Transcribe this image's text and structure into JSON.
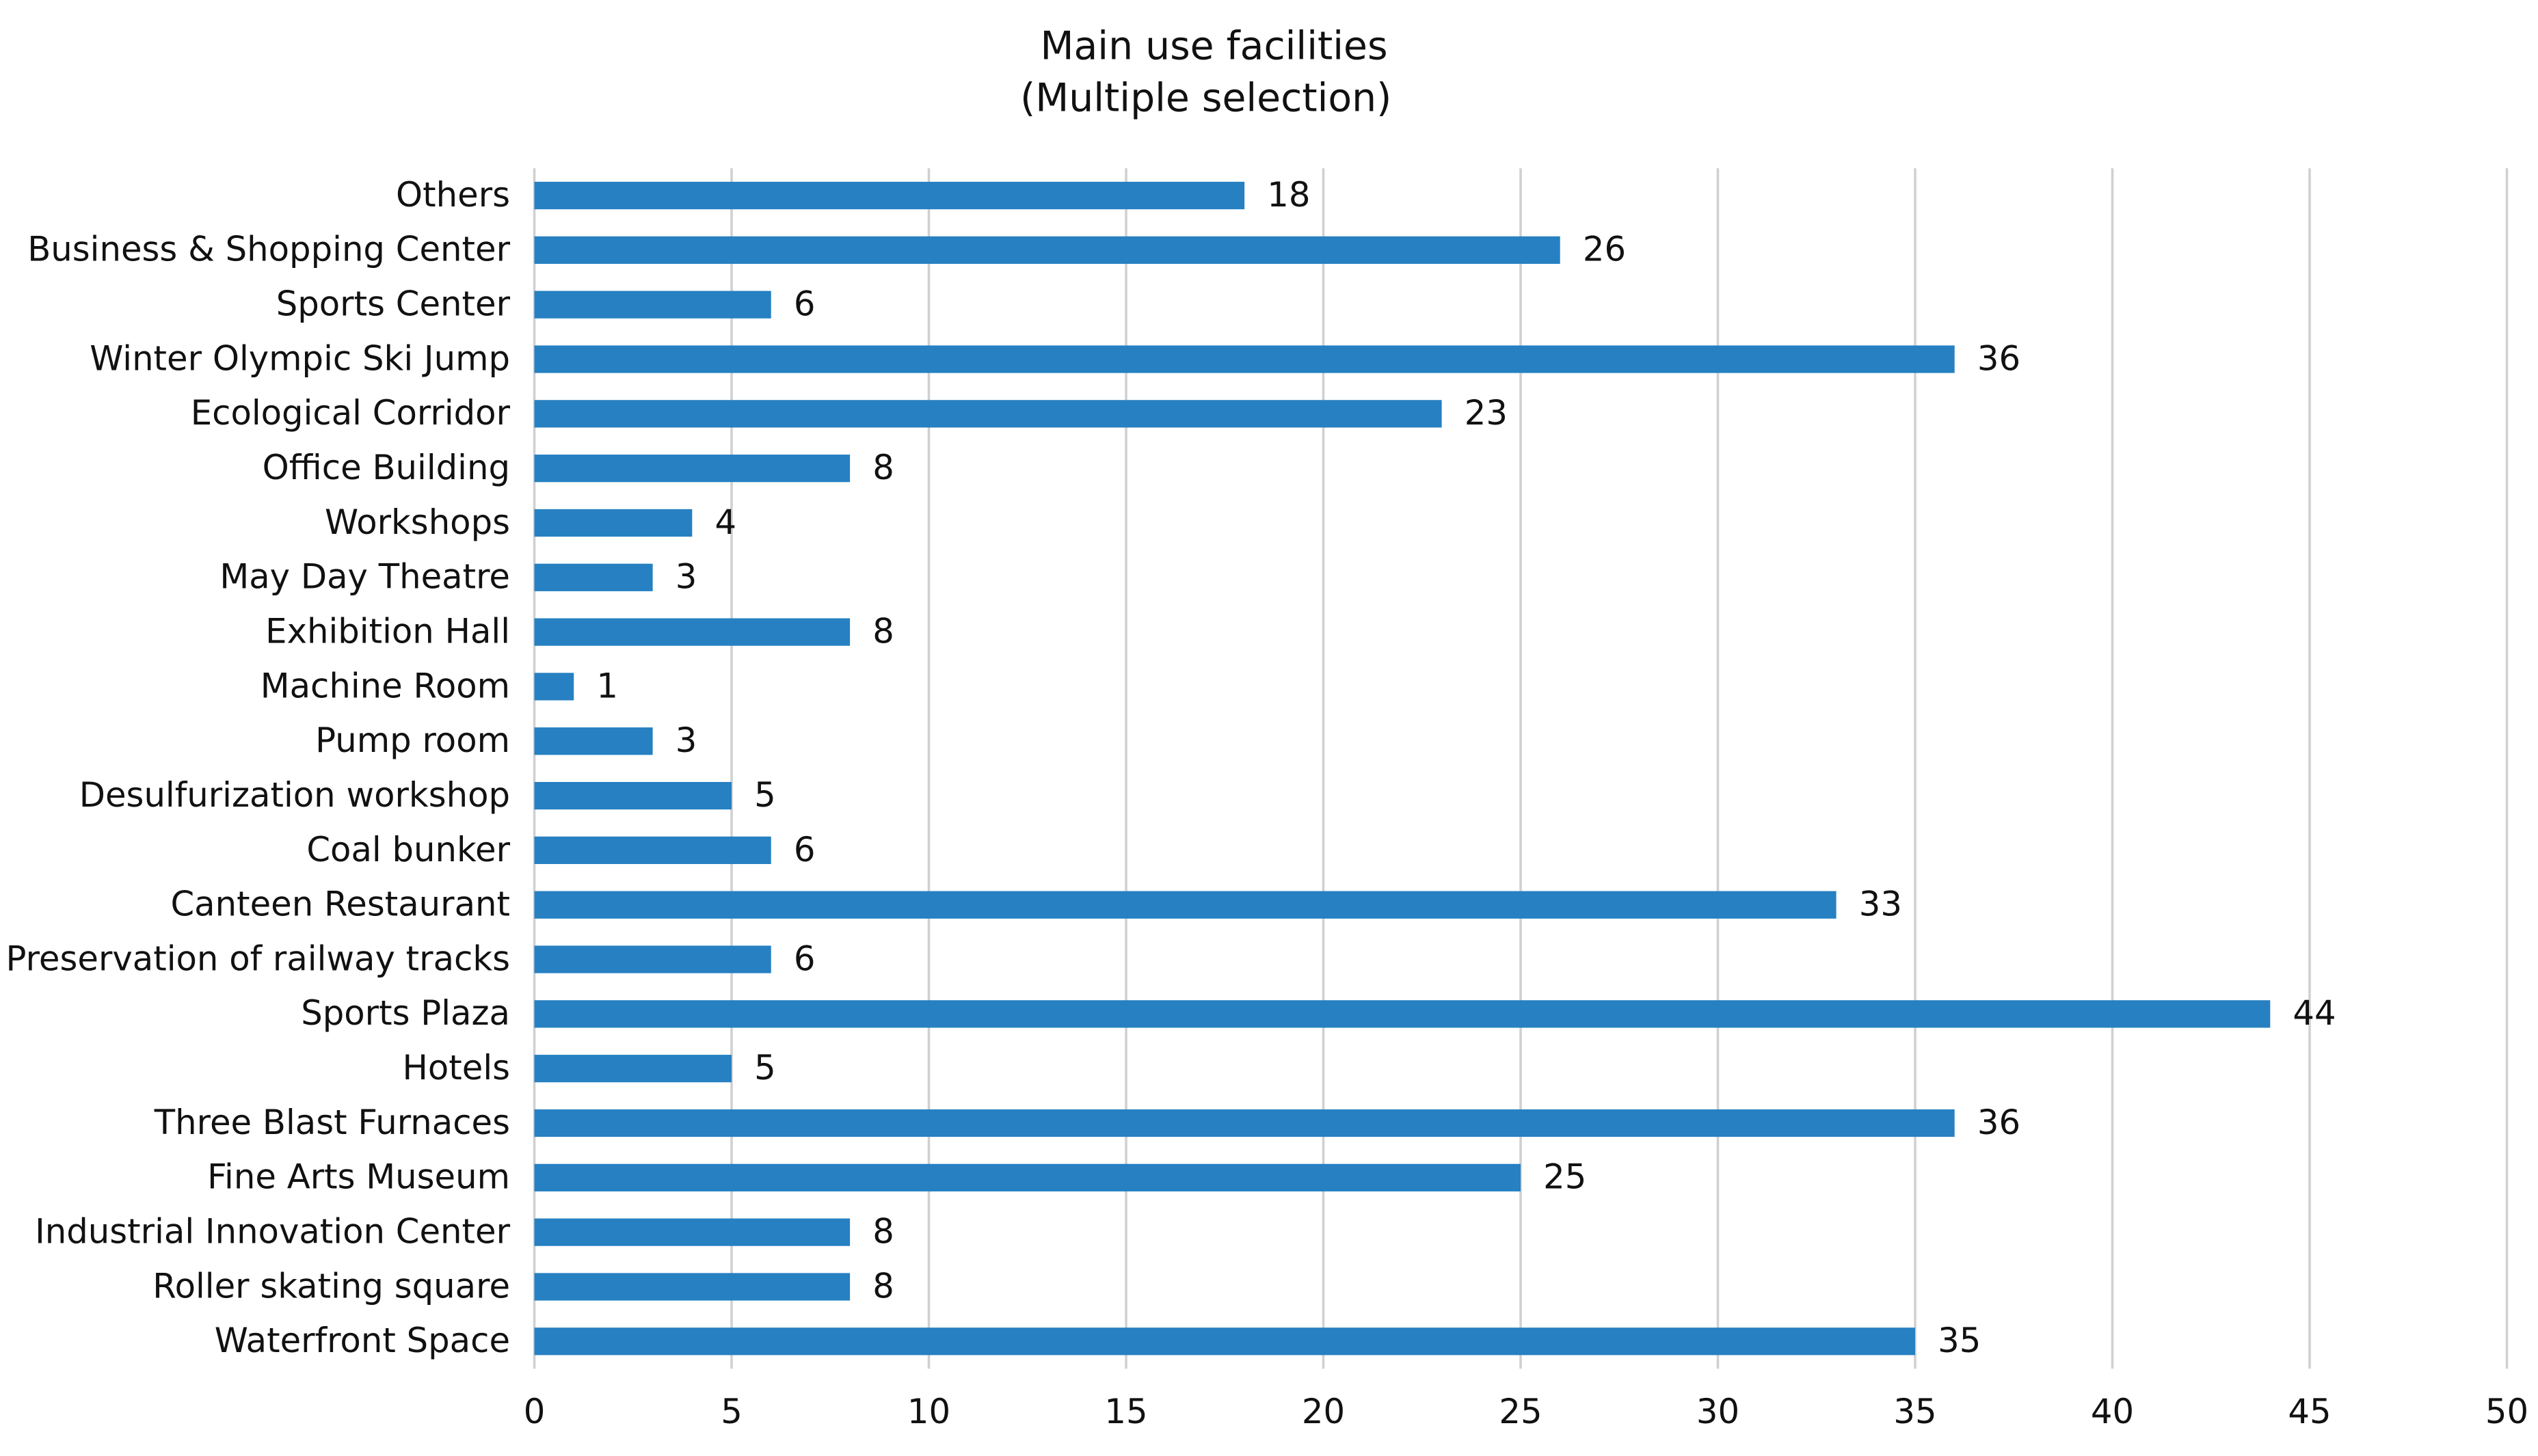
{
  "chart_data": {
    "type": "bar",
    "orientation": "horizontal",
    "title": "Main use facilities",
    "subtitle": "(Multiple selection)",
    "categories": [
      "Others",
      "Business & Shopping Center",
      "Sports Center",
      "Winter Olympic Ski Jump",
      "Ecological Corridor",
      "Office Building",
      "Workshops",
      "May Day Theatre",
      "Exhibition Hall",
      "Machine Room",
      "Pump room",
      "Desulfurization workshop",
      "Coal bunker",
      "Canteen Restaurant",
      "Preservation of railway tracks",
      "Sports Plaza",
      "Hotels",
      "Three Blast Furnaces",
      "Fine Arts Museum",
      "Industrial Innovation Center",
      "Roller skating square",
      "Waterfront Space"
    ],
    "values": [
      18,
      26,
      6,
      36,
      23,
      8,
      4,
      3,
      8,
      1,
      3,
      5,
      6,
      33,
      6,
      44,
      5,
      36,
      25,
      8,
      8,
      35
    ],
    "color": "#2680c2",
    "xlim": [
      0,
      50
    ],
    "xticks": [
      0,
      5,
      10,
      15,
      20,
      25,
      30,
      35,
      40,
      45,
      50
    ],
    "grid": true
  }
}
